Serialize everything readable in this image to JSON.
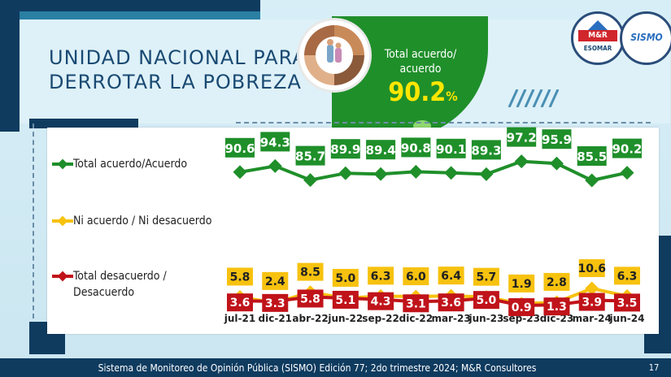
{
  "title_lines": [
    "UNIDAD NACIONAL PARA",
    "DERROTAR LA POBREZA"
  ],
  "callout": {
    "label_lines": [
      "Total acuerdo/",
      "acuerdo"
    ],
    "value": "90.2",
    "unit": "%",
    "color": "#1f8f2a",
    "value_color": "#ffe600"
  },
  "logos": {
    "mr": {
      "name": "M&R",
      "sub": "ESOMAR"
    },
    "sismo": {
      "name": "SISMO"
    }
  },
  "footer": "Sistema de Monitoreo de Opinión Pública (SISMO) Edición 77; 2do trimestre 2024; M&R Consultores",
  "page_number": "17",
  "chart_data": {
    "type": "line",
    "categories": [
      "jul-21",
      "dic-21",
      "abr-22",
      "jun-22",
      "sep-22",
      "dic-22",
      "mar-23",
      "jun-23",
      "sep-23",
      "dic-23",
      "mar-24",
      "jun-24"
    ],
    "series": [
      {
        "name": "Total acuerdo/Acuerdo",
        "color": "#1f8f2a",
        "values": [
          90.6,
          94.3,
          85.7,
          89.9,
          89.4,
          90.8,
          90.1,
          89.3,
          97.2,
          95.9,
          85.5,
          90.2
        ],
        "labels": [
          "90.6",
          "94.3",
          "85.7",
          "89.9",
          "89.4",
          "90.8",
          "90.1",
          "89.3",
          "97.2",
          "95.9",
          "85.5",
          "90.2"
        ]
      },
      {
        "name": "Ni acuerdo / Ni desacuerdo",
        "color": "#f7c20f",
        "values": [
          5.8,
          2.4,
          8.5,
          5.0,
          6.3,
          6.0,
          6.4,
          5.7,
          1.9,
          2.8,
          10.6,
          6.3
        ],
        "labels": [
          "5.8",
          "2.4",
          "8.5",
          "5.0",
          "6.3",
          "6.0",
          "6.4",
          "5.7",
          "1.9",
          "2.8",
          "10.6",
          "6.3"
        ]
      },
      {
        "name": "Total desacuerdo / Desacuerdo",
        "color": "#c0131a",
        "values": [
          3.6,
          3.3,
          5.8,
          5.1,
          4.3,
          3.1,
          3.6,
          5.0,
          0.9,
          1.3,
          3.9,
          3.5
        ],
        "labels": [
          "3.6",
          "3.3",
          "5.8",
          "5.1",
          "4.3",
          "3.1",
          "3.6",
          "5.0",
          "0.9",
          "1.3",
          "3.9",
          "3.5"
        ]
      }
    ],
    "legend_labels": [
      [
        "Total acuerdo/Acuerdo"
      ],
      [
        "Ni acuerdo / Ni desacuerdo"
      ],
      [
        "Total desacuerdo /",
        "Desacuerdo"
      ]
    ],
    "legend_placement": "left",
    "grid": false
  }
}
